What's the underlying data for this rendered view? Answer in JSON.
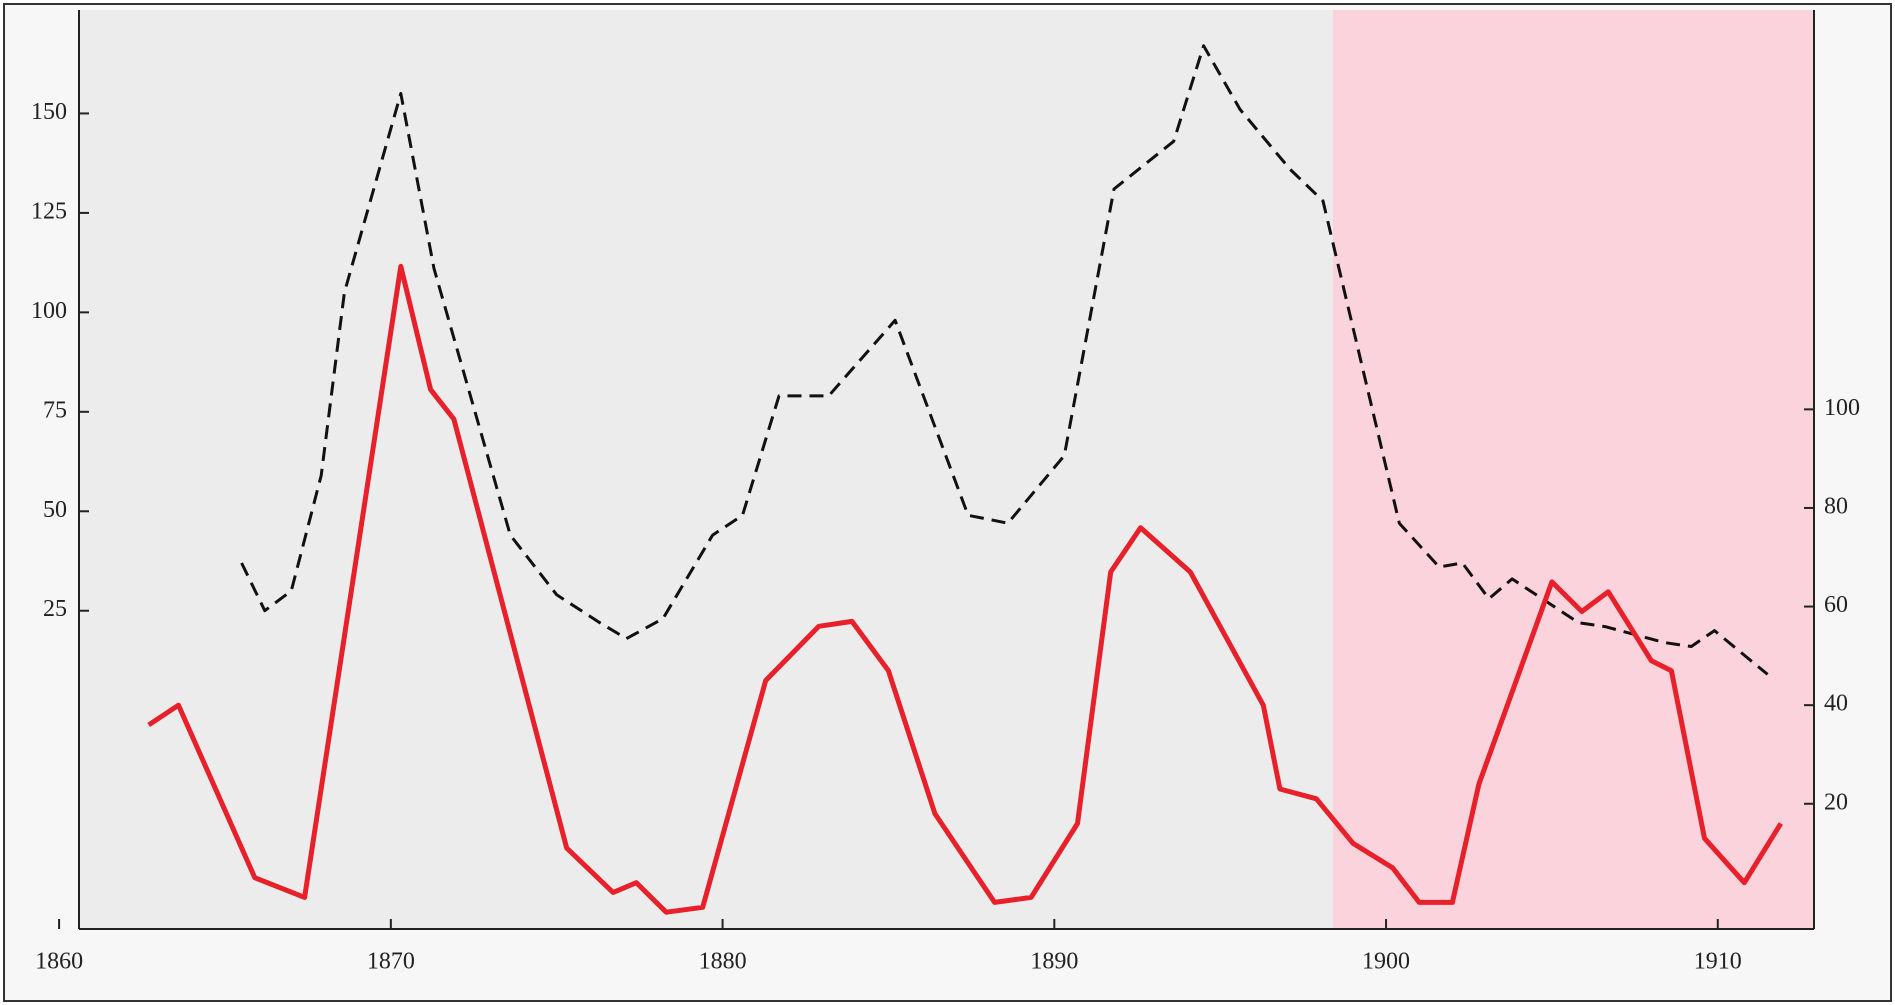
{
  "chart_data": {
    "type": "line",
    "xlim": [
      1860.6,
      1912.9
    ],
    "xticks": [
      1860,
      1870,
      1880,
      1890,
      1900,
      1910
    ],
    "ylim": [
      -55,
      176
    ],
    "yticks": [
      25,
      50,
      75,
      100,
      125,
      150
    ],
    "y2lim": [
      -5.4,
      181
    ],
    "y2ticks": [
      20,
      40,
      60,
      80,
      100
    ],
    "shaded_span": [
      1898.4,
      1912.9
    ],
    "shade_color": "#fbd3dc",
    "series": [
      {
        "color": "#111111",
        "dashed": true,
        "axis": "y",
        "x": [
          1865.5,
          1866.2,
          1867.0,
          1867.9,
          1868.6,
          1870.3,
          1871.3,
          1873.6,
          1875.0,
          1876.3,
          1877.1,
          1878.2,
          1879.7,
          1880.6,
          1881.7,
          1883.2,
          1885.2,
          1887.4,
          1888.6,
          1890.3,
          1891.8,
          1893.6,
          1894.5,
          1895.6,
          1897.1,
          1898.1,
          1900.4,
          1901.6,
          1902.3,
          1903.1,
          1903.8,
          1905.8,
          1906.6,
          1908.4,
          1909.2,
          1909.9,
          1911.5
        ],
        "values": [
          37,
          25,
          30,
          59,
          105,
          155,
          111,
          44,
          29,
          22,
          18,
          23,
          44,
          49,
          79,
          79,
          98,
          49,
          47,
          64,
          131,
          143,
          167,
          151,
          136,
          128,
          47,
          36,
          37,
          28,
          33,
          22,
          21,
          17,
          16,
          20,
          9
        ]
      },
      {
        "color": "#e8202a",
        "dashed": false,
        "axis": "y2",
        "x": [
          1862.7,
          1863.6,
          1865.9,
          1867.4,
          1870.3,
          1871.2,
          1871.9,
          1875.3,
          1876.7,
          1877.4,
          1878.3,
          1879.4,
          1881.3,
          1882.9,
          1883.9,
          1885.0,
          1886.4,
          1888.2,
          1889.3,
          1890.7,
          1891.7,
          1892.6,
          1894.1,
          1896.3,
          1896.8,
          1897.9,
          1899.0,
          1900.2,
          1901.0,
          1902.0,
          1902.8,
          1905.0,
          1905.9,
          1906.7,
          1908.0,
          1908.6,
          1909.6,
          1910.8,
          1911.9
        ],
        "values": [
          36,
          40,
          5,
          1,
          129,
          104,
          98,
          11,
          2,
          4,
          -2,
          -1,
          45,
          56,
          57,
          47,
          18,
          0,
          1,
          16,
          67,
          76,
          67,
          40,
          23,
          21,
          12,
          7,
          0,
          0,
          24,
          65,
          59,
          63,
          49,
          47,
          13,
          4,
          16
        ]
      }
    ]
  }
}
